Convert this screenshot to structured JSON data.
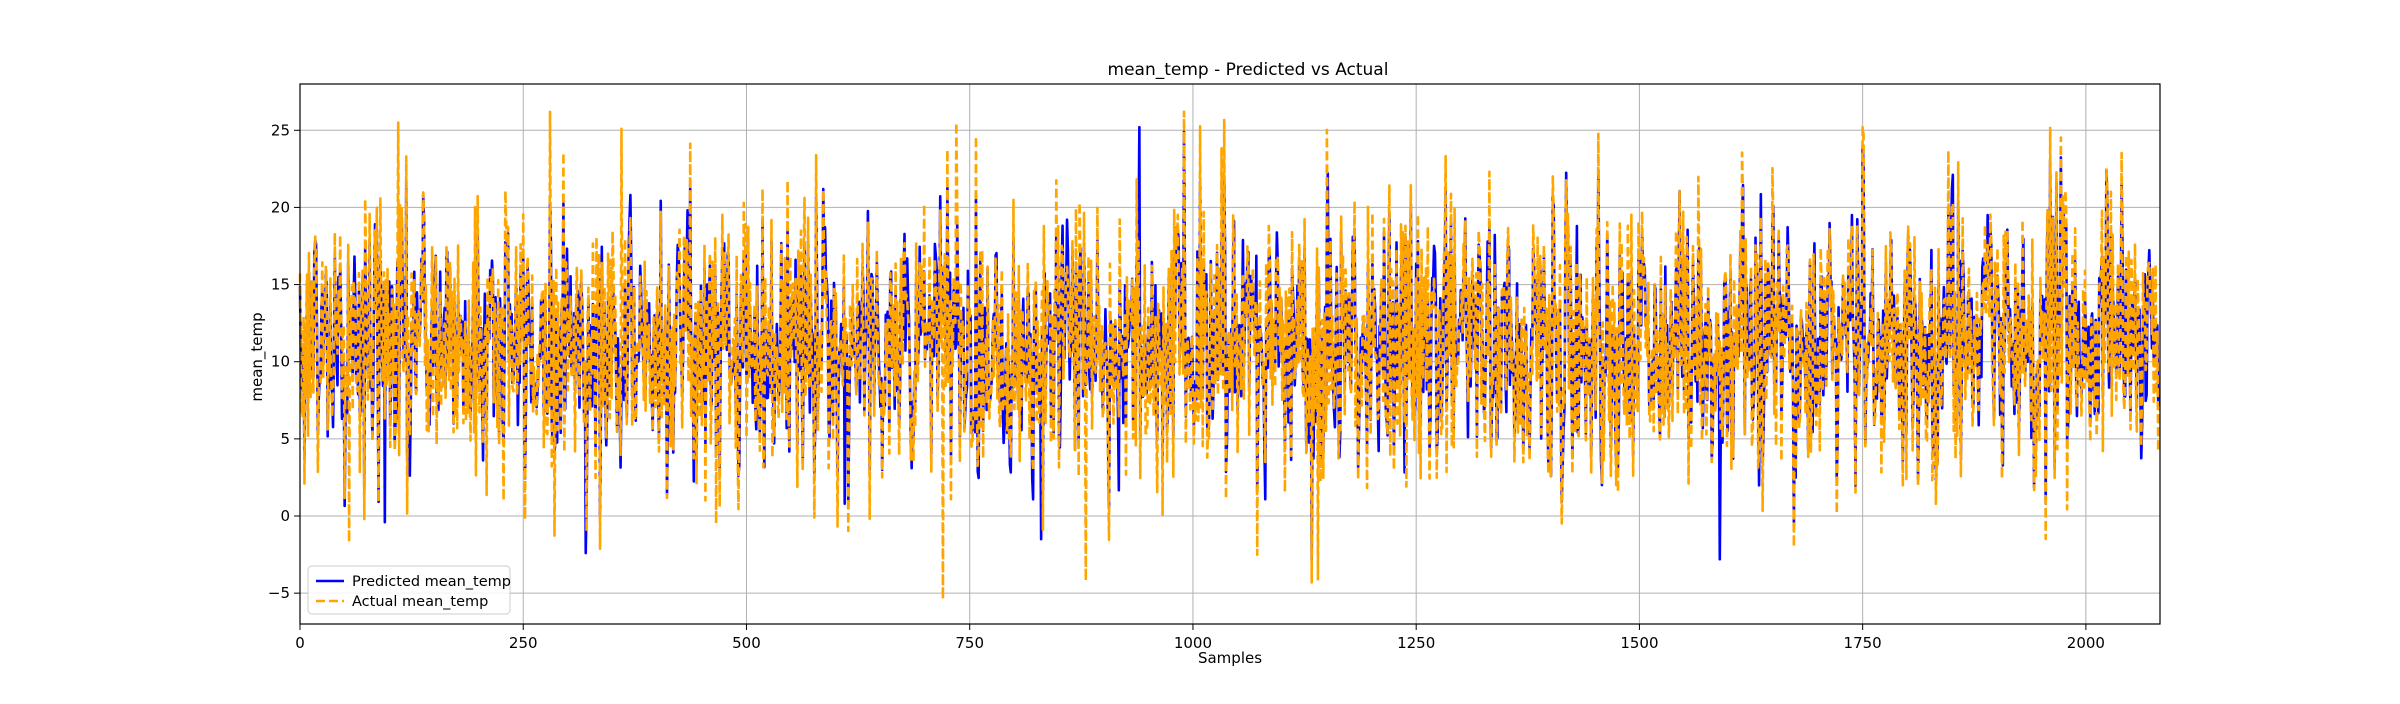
{
  "chart_data": {
    "type": "line",
    "title": "mean_temp - Predicted vs Actual",
    "xlabel": "Samples",
    "ylabel": "mean_temp",
    "xlim": [
      0,
      2083
    ],
    "ylim": [
      -7,
      28
    ],
    "x_ticks": [
      0,
      250,
      500,
      750,
      1000,
      1250,
      1500,
      1750,
      2000
    ],
    "y_ticks": [
      -5,
      0,
      5,
      10,
      15,
      20,
      25
    ],
    "grid": true,
    "legend_position": "lower-left",
    "series": [
      {
        "name": "Predicted mean_temp",
        "color": "#0000ff",
        "style": "solid",
        "n_points": 2083,
        "mean": 11.3,
        "std": 4.8,
        "min": -2.8,
        "max": 25.2
      },
      {
        "name": "Actual mean_temp",
        "color": "#ffa500",
        "style": "dashed",
        "n_points": 2083,
        "mean": 11.3,
        "std": 5.0,
        "min": -5.4,
        "max": 26.2
      }
    ],
    "notable_points": {
      "predicted": [
        {
          "x": 95,
          "y": -0.4
        },
        {
          "x": 320,
          "y": -2.4
        },
        {
          "x": 610,
          "y": 0.8
        },
        {
          "x": 830,
          "y": -1.5
        },
        {
          "x": 940,
          "y": 25.2
        },
        {
          "x": 990,
          "y": 24.9
        },
        {
          "x": 1590,
          "y": -2.8
        },
        {
          "x": 1750,
          "y": 24.0
        }
      ],
      "actual": [
        {
          "x": 55,
          "y": -1.7
        },
        {
          "x": 110,
          "y": 25.5
        },
        {
          "x": 360,
          "y": 25.1
        },
        {
          "x": 720,
          "y": -5.4
        },
        {
          "x": 735,
          "y": 25.5
        },
        {
          "x": 880,
          "y": -4.2
        },
        {
          "x": 990,
          "y": 26.2
        },
        {
          "x": 1140,
          "y": -4.1
        },
        {
          "x": 1750,
          "y": 25.2
        }
      ]
    }
  }
}
